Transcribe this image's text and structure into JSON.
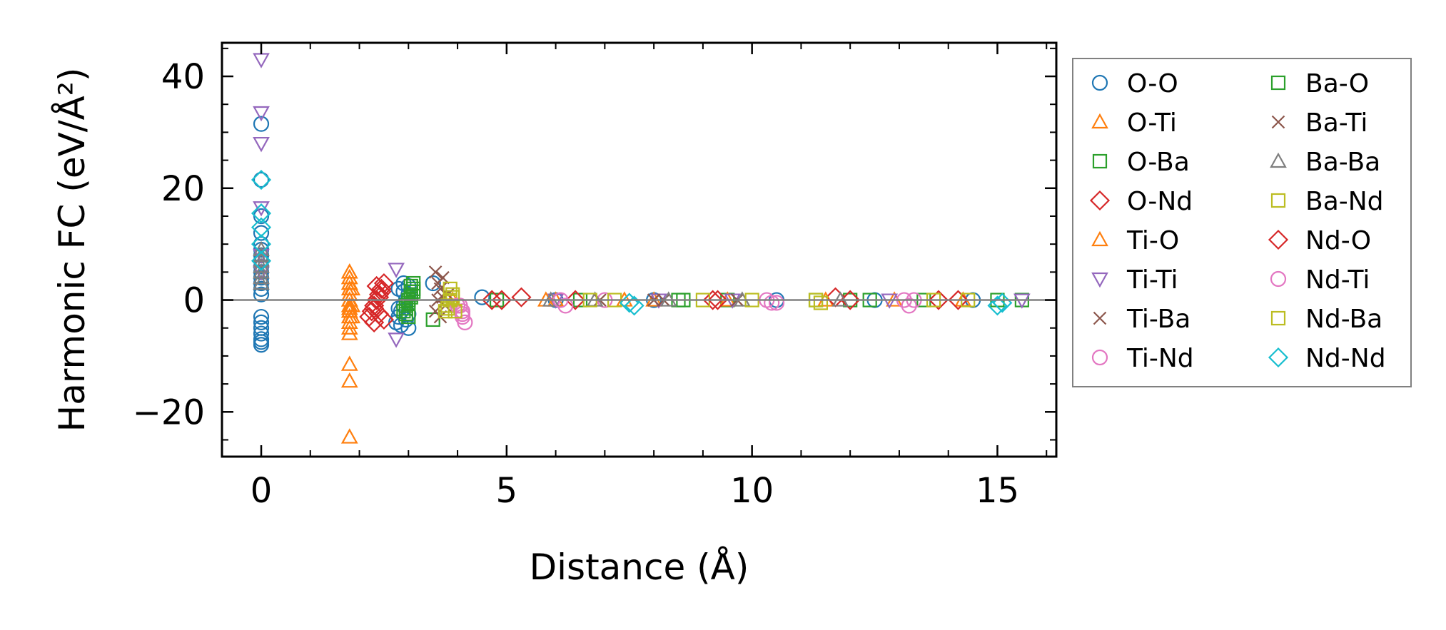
{
  "chart_data": {
    "type": "scatter",
    "title": "",
    "xlabel": "Distance (Å)",
    "ylabel": "Harmonic FC (eV/Å²)",
    "xlim": [
      -0.8,
      16.2
    ],
    "ylim": [
      -28,
      46
    ],
    "xticks": [
      0,
      5,
      10,
      15
    ],
    "yticks": [
      -20,
      0,
      20,
      40
    ],
    "xtick_labels": [
      "0",
      "5",
      "10",
      "15"
    ],
    "ytick_labels": [
      "−20",
      "0",
      "20",
      "40"
    ],
    "zero_line": true,
    "grid": false,
    "legend_position": "right-outside",
    "legend_columns": 2,
    "series": [
      {
        "name": "O-O",
        "marker": "circle",
        "color": "#1f77b4",
        "x": [
          0,
          0,
          0,
          0,
          0,
          0,
          0,
          0,
          0,
          0,
          0,
          0,
          0,
          0,
          0,
          0,
          0,
          0,
          0,
          0,
          0,
          2.75,
          2.8,
          2.85,
          2.9,
          2.95,
          3.0,
          2.8,
          2.9,
          3.0,
          2.85,
          2.95,
          3.0,
          2.8,
          2.9,
          3.0,
          3.5,
          4.5,
          6.0,
          8.0,
          10.5,
          12.5,
          14.5
        ],
        "y": [
          31.5,
          21.5,
          15,
          12,
          10,
          9,
          8,
          7,
          6,
          5,
          4,
          3,
          2,
          1,
          -3,
          -4,
          -5,
          -6,
          -7,
          -7.5,
          -8,
          -4,
          -3,
          -2,
          -1,
          0,
          1,
          2,
          3,
          -5,
          -4.5,
          -3.5,
          -2.5,
          -1.5,
          1.5,
          2.5,
          3,
          0.5,
          0,
          0,
          0,
          0,
          0
        ]
      },
      {
        "name": "O-Ti",
        "marker": "triangle-up",
        "color": "#ff7f0e",
        "x": [
          1.8,
          1.8,
          1.8,
          1.8,
          1.8,
          1.8,
          1.8,
          1.8,
          1.8,
          1.8,
          1.8,
          1.8,
          1.8,
          1.8,
          1.8,
          1.85,
          1.85,
          1.85,
          3.9,
          6.0,
          8.0,
          11.5,
          14.3
        ],
        "y": [
          -24.5,
          -14.5,
          -11.5,
          -6,
          -4,
          -3,
          -2,
          -1,
          0,
          1,
          2,
          3,
          4,
          5,
          -5,
          -3,
          -1,
          2,
          0,
          0,
          0,
          0,
          0
        ]
      },
      {
        "name": "O-Ba",
        "marker": "square",
        "color": "#2ca02c",
        "x": [
          2.9,
          2.95,
          3.0,
          3.05,
          3.1,
          3.0,
          3.1,
          2.95,
          3.05,
          3.5,
          4.8,
          6.5,
          8.5,
          9.5,
          11.3,
          12.0,
          13.5,
          15.0,
          15.5
        ],
        "y": [
          -2,
          -1,
          0,
          1,
          2,
          -3,
          3,
          -2.5,
          1.5,
          -3.5,
          0,
          0,
          0,
          0,
          0,
          0,
          0,
          0,
          0
        ]
      },
      {
        "name": "O-Nd",
        "marker": "diamond",
        "color": "#d62728",
        "x": [
          2.2,
          2.25,
          2.3,
          2.35,
          2.4,
          2.45,
          2.5,
          2.3,
          2.4,
          2.35,
          4.7,
          5.3,
          6.4,
          9.2,
          11.7,
          12.0,
          13.8,
          14.2
        ],
        "y": [
          -3,
          -2,
          -1,
          0,
          1,
          2,
          3,
          -4,
          -2.5,
          2.5,
          0,
          0.5,
          0,
          0,
          0.5,
          0,
          0,
          0
        ]
      },
      {
        "name": "Ti-O",
        "marker": "triangle-up",
        "color": "#ff7f0e",
        "x": [
          1.8,
          1.8,
          1.8,
          1.8,
          1.8,
          1.8,
          1.8,
          1.8,
          1.8,
          1.8,
          5.8,
          7.4,
          9.5,
          12.9
        ],
        "y": [
          -3,
          -2,
          -1,
          0,
          1,
          2,
          3,
          4,
          5,
          -1.5,
          0,
          0,
          0,
          0
        ]
      },
      {
        "name": "Ti-Ti",
        "marker": "triangle-down",
        "color": "#9467bd",
        "x": [
          0,
          0,
          0,
          0,
          0,
          0,
          2.75,
          2.75,
          6.0,
          8.1,
          9.6,
          12.8,
          15.5
        ],
        "y": [
          43,
          33.5,
          28,
          16.5,
          8,
          5,
          5.5,
          -7,
          0,
          0,
          0,
          0,
          0
        ]
      },
      {
        "name": "Ti-Ba",
        "marker": "x",
        "color": "#8c564b",
        "x": [
          3.55,
          3.6,
          3.65,
          3.7,
          3.75,
          3.8,
          3.55,
          6.9,
          8.0,
          9.7
        ],
        "y": [
          -2,
          0,
          2,
          4,
          -1,
          1,
          5,
          0,
          0,
          0
        ]
      },
      {
        "name": "Ti-Nd",
        "marker": "circle",
        "color": "#e377c2",
        "x": [
          4.05,
          4.1,
          4.1,
          4.15,
          6.2,
          7.0,
          10.3,
          10.5,
          13.2,
          13.3
        ],
        "y": [
          -1,
          -2,
          -3,
          -4,
          -1,
          0,
          0,
          -0.5,
          -1,
          0
        ]
      },
      {
        "name": "Ba-O",
        "marker": "square",
        "color": "#2ca02c",
        "x": [
          2.95,
          3.0,
          3.05,
          3.1,
          3.05,
          8.6,
          12.4
        ],
        "y": [
          -1.5,
          -0.5,
          0.5,
          1.5,
          2.5,
          0,
          0
        ]
      },
      {
        "name": "Ba-Ti",
        "marker": "x",
        "color": "#8c564b",
        "x": [
          3.6,
          3.65,
          3.7,
          8.2
        ],
        "y": [
          3,
          -3,
          0.5,
          0
        ]
      },
      {
        "name": "Ba-Ba",
        "marker": "triangle-up",
        "color": "#7f7f7f",
        "x": [
          0,
          0,
          0,
          0,
          0,
          0,
          0,
          5.9,
          6.8,
          8.3,
          9.8,
          11.8
        ],
        "y": [
          9,
          8,
          7,
          6,
          5,
          4,
          3,
          0,
          0,
          0,
          0,
          0
        ]
      },
      {
        "name": "Ba-Nd",
        "marker": "square",
        "color": "#bcbd22",
        "x": [
          3.75,
          3.8,
          3.85,
          3.9,
          3.85,
          6.7,
          9.0,
          11.4,
          13.7,
          14.4
        ],
        "y": [
          -2,
          -1,
          0,
          1,
          2,
          0,
          0,
          -0.5,
          0,
          0
        ]
      },
      {
        "name": "Nd-O",
        "marker": "diamond",
        "color": "#d62728",
        "x": [
          2.3,
          2.4,
          2.45,
          2.5,
          4.9,
          9.3
        ],
        "y": [
          -1.5,
          0.5,
          1.5,
          -3.5,
          0,
          0
        ]
      },
      {
        "name": "Nd-Ti",
        "marker": "circle",
        "color": "#e377c2",
        "x": [
          4.0,
          4.1,
          6.1,
          10.4,
          13.1
        ],
        "y": [
          -1,
          -2.5,
          0,
          -0.5,
          0
        ]
      },
      {
        "name": "Nd-Ba",
        "marker": "square",
        "color": "#bcbd22",
        "x": [
          3.8,
          3.9,
          3.95,
          7.2,
          10.0,
          11.3
        ],
        "y": [
          -1.5,
          0.5,
          -2,
          0,
          0,
          0
        ]
      },
      {
        "name": "Nd-Nd",
        "marker": "diamond",
        "color": "#17becf",
        "x": [
          0,
          0,
          0,
          0,
          0,
          7.5,
          7.6,
          15.1,
          15.0
        ],
        "y": [
          21.5,
          15.5,
          13,
          10,
          7,
          -0.5,
          -1,
          -0.5,
          -1
        ]
      }
    ]
  }
}
